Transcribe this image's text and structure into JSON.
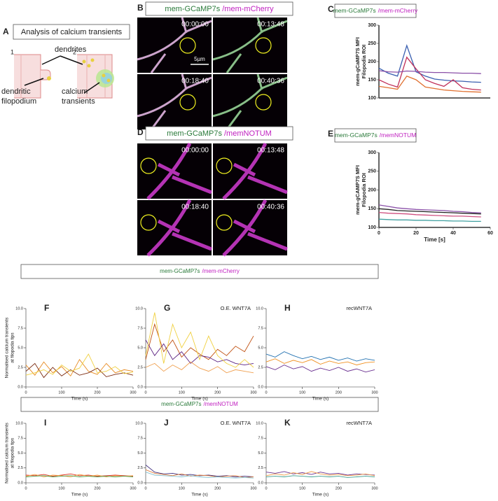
{
  "panel_labels": {
    "a": "A",
    "b": "B",
    "d": "D"
  },
  "panel_a": {
    "title": "Analysis of calcium transients",
    "step1": "1",
    "step2": "2",
    "dendrites": "dendrites",
    "filopodium": [
      "dendritic",
      "filopodium"
    ],
    "transients": [
      "calcium",
      "transients"
    ]
  },
  "micrographs": [
    {
      "header": [
        "mem-GCaMP7s",
        "/mem-mCherry"
      ],
      "times": [
        "00:00:00",
        "00:13:48",
        "00:18:40",
        "00:40:36"
      ],
      "scale": "5µm"
    },
    {
      "header": [
        "mem-GCaMP7s",
        "/memNOTUM"
      ],
      "times": [
        "00:00:00",
        "00:13:48",
        "00:18:40",
        "00:40:36"
      ]
    }
  ],
  "sections": [
    [
      "mem-GCaMP7s",
      "/mem-mCherry"
    ],
    [
      "mem-GCaMP7s",
      "/memNOTUM"
    ]
  ],
  "chart_data": [
    {
      "type": "line",
      "label": "C",
      "header": [
        "mem-GCaMP7s",
        "/mem-mCherry"
      ],
      "ylabel": [
        "mem-gCaMP7S MFI",
        "Filopodia ROI"
      ],
      "x": [
        0,
        5,
        10,
        15,
        20,
        25,
        30,
        35,
        40,
        45,
        50,
        55
      ],
      "xlim": [
        0,
        60
      ],
      "ylim": [
        100,
        300
      ],
      "yticks": [
        100,
        150,
        200,
        250,
        300
      ],
      "series": [
        {
          "color": "#3a5fb0",
          "values": [
            182,
            168,
            160,
            244,
            172,
            160,
            152,
            149,
            147,
            146,
            144,
            143
          ]
        },
        {
          "color": "#c0305a",
          "values": [
            150,
            138,
            130,
            212,
            180,
            150,
            140,
            132,
            150,
            128,
            124,
            122
          ]
        },
        {
          "color": "#8a50a8",
          "values": [
            175,
            172,
            171,
            174,
            173,
            171,
            170,
            170,
            169,
            168,
            168,
            167
          ]
        },
        {
          "color": "#e07030",
          "values": [
            132,
            128,
            124,
            160,
            150,
            130,
            126,
            122,
            120,
            118,
            117,
            116
          ]
        }
      ]
    },
    {
      "type": "line",
      "label": "E",
      "header": [
        "mem-GCaMP7s",
        "/memNOTUM"
      ],
      "ylabel": [
        "mem-gCAMP7S MFI",
        "Filopodia ROI"
      ],
      "xlabel": "Time [s]",
      "x": [
        0,
        5,
        10,
        15,
        20,
        25,
        30,
        35,
        40,
        45,
        50,
        55
      ],
      "xlim": [
        0,
        60
      ],
      "ylim": [
        100,
        300
      ],
      "yticks": [
        100,
        150,
        200,
        250,
        300
      ],
      "xticks": [
        0,
        20,
        40,
        60
      ],
      "series": [
        {
          "color": "#8a50a8",
          "values": [
            160,
            156,
            152,
            150,
            148,
            147,
            146,
            145,
            143,
            142,
            140,
            139
          ]
        },
        {
          "color": "#222222",
          "values": [
            150,
            148,
            145,
            144,
            143,
            142,
            141,
            140,
            139,
            138,
            137,
            136
          ]
        },
        {
          "color": "#d05080",
          "values": [
            140,
            138,
            137,
            136,
            134,
            133,
            132,
            131,
            130,
            130,
            129,
            128
          ]
        },
        {
          "color": "#40a0a0",
          "values": [
            122,
            121,
            120,
            120,
            119,
            119,
            118,
            118,
            117,
            117,
            116,
            116
          ]
        }
      ]
    },
    {
      "type": "line",
      "label": "F",
      "ylabel": [
        "Normalised calcium transients",
        "at filopodia tips"
      ],
      "xlabel": "Time (s)",
      "x": [
        0,
        25,
        50,
        75,
        100,
        125,
        150,
        175,
        200,
        225,
        250,
        275,
        300
      ],
      "xlim": [
        0,
        300
      ],
      "ylim": [
        0,
        10
      ],
      "xticks": [
        0,
        100,
        200,
        300
      ],
      "yticks": [
        {
          "value": 0,
          "label": "0.0"
        },
        {
          "value": 2.5,
          "label": "2.5"
        },
        {
          "value": 5,
          "label": "5.0"
        },
        {
          "value": 7.5,
          "label": "7.5"
        },
        {
          "value": 10,
          "label": "10.0"
        }
      ],
      "series": [
        {
          "color": "#e88a20",
          "values": [
            2.8,
            1.5,
            3.2,
            1.8,
            2.6,
            1.4,
            3.5,
            2.0,
            1.6,
            3.0,
            1.8,
            2.2,
            2.0
          ]
        },
        {
          "color": "#7a2a10",
          "values": [
            2.0,
            3.0,
            1.2,
            2.5,
            1.4,
            2.2,
            1.5,
            1.8,
            2.4,
            1.3,
            1.6,
            1.8,
            1.5
          ]
        },
        {
          "color": "#f0d040",
          "values": [
            1.5,
            1.8,
            2.2,
            1.6,
            2.8,
            2.0,
            2.4,
            4.2,
            1.8,
            2.0,
            2.6,
            1.7,
            1.9
          ]
        }
      ]
    },
    {
      "type": "line",
      "label": "G",
      "title": "O.E. WNT7A",
      "xlabel": "Time (s)",
      "x": [
        0,
        25,
        50,
        75,
        100,
        125,
        150,
        175,
        200,
        225,
        250,
        275,
        300
      ],
      "xlim": [
        0,
        300
      ],
      "ylim": [
        0,
        10
      ],
      "xticks": [
        0,
        100,
        200,
        300
      ],
      "yticks": [
        {
          "value": 0,
          "label": "0.0"
        },
        {
          "value": 2.5,
          "label": "2.5"
        },
        {
          "value": 5,
          "label": "5.0"
        },
        {
          "value": 7.5,
          "label": "7.5"
        },
        {
          "value": 10,
          "label": "10.0"
        }
      ],
      "series": [
        {
          "color": "#c05010",
          "values": [
            3.5,
            8.0,
            4.5,
            6.0,
            3.8,
            5.0,
            4.2,
            3.5,
            4.8,
            4.0,
            5.2,
            4.5,
            6.5
          ]
        },
        {
          "color": "#5a2080",
          "values": [
            6.0,
            4.0,
            5.5,
            3.5,
            4.5,
            3.0,
            4.0,
            3.8,
            3.2,
            3.5,
            3.0,
            2.8,
            3.0
          ]
        },
        {
          "color": "#f0d040",
          "values": [
            4.0,
            9.5,
            3.0,
            8.0,
            5.0,
            7.0,
            3.5,
            6.5,
            4.0,
            3.0,
            2.5,
            3.5,
            2.5
          ]
        },
        {
          "color": "#f0a050",
          "values": [
            2.5,
            3.0,
            2.0,
            2.8,
            2.2,
            3.2,
            2.4,
            2.0,
            2.6,
            1.8,
            2.2,
            2.0,
            1.8
          ]
        }
      ]
    },
    {
      "type": "line",
      "label": "H",
      "title": "recWNT7A",
      "xlabel": "Time (s)",
      "x": [
        0,
        25,
        50,
        75,
        100,
        125,
        150,
        175,
        200,
        225,
        250,
        275,
        300
      ],
      "xlim": [
        0,
        300
      ],
      "ylim": [
        0,
        10
      ],
      "xticks": [
        0,
        100,
        200,
        300
      ],
      "yticks": [
        {
          "value": 0,
          "label": "0.0"
        },
        {
          "value": 2.5,
          "label": "2.5"
        },
        {
          "value": 5,
          "label": "5.0"
        },
        {
          "value": 7.5,
          "label": "7.5"
        },
        {
          "value": 10,
          "label": "10.0"
        }
      ],
      "series": [
        {
          "color": "#2070b0",
          "values": [
            4.2,
            3.8,
            4.5,
            4.0,
            3.6,
            3.9,
            3.5,
            3.8,
            3.4,
            3.7,
            3.3,
            3.6,
            3.4
          ]
        },
        {
          "color": "#f09020",
          "values": [
            3.2,
            3.6,
            3.0,
            3.4,
            3.1,
            3.5,
            2.9,
            3.3,
            3.0,
            3.2,
            2.8,
            3.1,
            3.2
          ]
        },
        {
          "color": "#6a3090",
          "values": [
            2.6,
            2.2,
            2.8,
            2.3,
            2.6,
            2.0,
            2.4,
            2.1,
            2.5,
            2.0,
            2.3,
            1.9,
            2.2
          ]
        }
      ]
    },
    {
      "type": "line",
      "label": "I",
      "ylabel": [
        "Normalised calcium transients",
        "at filopodia tips"
      ],
      "xlabel": "Time (s)",
      "x": [
        0,
        25,
        50,
        75,
        100,
        125,
        150,
        175,
        200,
        225,
        250,
        275,
        300
      ],
      "xlim": [
        0,
        300
      ],
      "ylim": [
        0,
        10
      ],
      "xticks": [
        0,
        100,
        200,
        300
      ],
      "yticks": [
        {
          "value": 0,
          "label": "0.0"
        },
        {
          "value": 2.5,
          "label": "2.5"
        },
        {
          "value": 5,
          "label": "5.0"
        },
        {
          "value": 7.5,
          "label": "7.5"
        },
        {
          "value": 10,
          "label": "10.0"
        }
      ],
      "series": [
        {
          "color": "#e03020",
          "values": [
            1.3,
            1.2,
            1.4,
            1.1,
            1.3,
            1.5,
            1.2,
            1.3,
            1.1,
            1.2,
            1.3,
            1.2,
            1.1
          ]
        },
        {
          "color": "#f0a040",
          "values": [
            1.1,
            1.4,
            1.0,
            1.3,
            1.2,
            1.0,
            1.4,
            1.1,
            1.3,
            1.0,
            1.2,
            1.1,
            1.2
          ]
        },
        {
          "color": "#50a050",
          "values": [
            1.0,
            1.1,
            1.2,
            1.0,
            1.1,
            1.2,
            1.0,
            1.1,
            1.0,
            1.1,
            1.0,
            1.1,
            1.0
          ]
        }
      ]
    },
    {
      "type": "line",
      "label": "J",
      "title": "O.E. WNT7A",
      "xlabel": "Time (s)",
      "x": [
        0,
        25,
        50,
        75,
        100,
        125,
        150,
        175,
        200,
        225,
        250,
        275,
        300
      ],
      "xlim": [
        0,
        300
      ],
      "ylim": [
        0,
        10
      ],
      "xticks": [
        0,
        100,
        200,
        300
      ],
      "yticks": [
        {
          "value": 0,
          "label": "0.0"
        },
        {
          "value": 2.5,
          "label": "2.5"
        },
        {
          "value": 5,
          "label": "5.0"
        },
        {
          "value": 7.5,
          "label": "7.5"
        },
        {
          "value": 10,
          "label": "10.0"
        }
      ],
      "series": [
        {
          "color": "#403080",
          "values": [
            3.0,
            1.8,
            1.5,
            1.6,
            1.3,
            1.4,
            1.2,
            1.3,
            1.1,
            1.2,
            1.0,
            1.1,
            1.0
          ]
        },
        {
          "color": "#e08040",
          "values": [
            2.2,
            1.6,
            1.4,
            1.2,
            1.5,
            1.1,
            1.3,
            1.2,
            1.0,
            1.1,
            1.2,
            0.9,
            1.0
          ]
        },
        {
          "color": "#80c0d0",
          "values": [
            1.8,
            1.3,
            1.2,
            1.1,
            1.0,
            1.2,
            1.0,
            0.9,
            1.0,
            0.9,
            0.8,
            0.9,
            0.8
          ]
        }
      ]
    },
    {
      "type": "line",
      "label": "K",
      "title": "recWNT7A",
      "xlabel": "Time (s)",
      "x": [
        0,
        25,
        50,
        75,
        100,
        125,
        150,
        175,
        200,
        225,
        250,
        275,
        300
      ],
      "xlim": [
        0,
        300
      ],
      "ylim": [
        0,
        10
      ],
      "xticks": [
        0,
        100,
        200,
        300
      ],
      "yticks": [
        {
          "value": 0,
          "label": "0.0"
        },
        {
          "value": 2.5,
          "label": "2.5"
        },
        {
          "value": 5,
          "label": "5.0"
        },
        {
          "value": 7.5,
          "label": "7.5"
        },
        {
          "value": 10,
          "label": "10.0"
        }
      ],
      "series": [
        {
          "color": "#6a3090",
          "values": [
            1.8,
            1.6,
            1.9,
            1.5,
            1.7,
            1.4,
            1.8,
            1.5,
            1.6,
            1.3,
            1.5,
            1.4,
            1.3
          ]
        },
        {
          "color": "#f0a050",
          "values": [
            1.2,
            1.5,
            1.3,
            1.7,
            1.4,
            1.9,
            1.5,
            1.3,
            1.4,
            1.2,
            1.3,
            1.5,
            1.2
          ]
        },
        {
          "color": "#40a090",
          "values": [
            1.0,
            1.1,
            1.0,
            1.2,
            1.1,
            1.0,
            1.1,
            1.0,
            1.1,
            0.9,
            1.0,
            1.1,
            1.0
          ]
        }
      ]
    }
  ]
}
